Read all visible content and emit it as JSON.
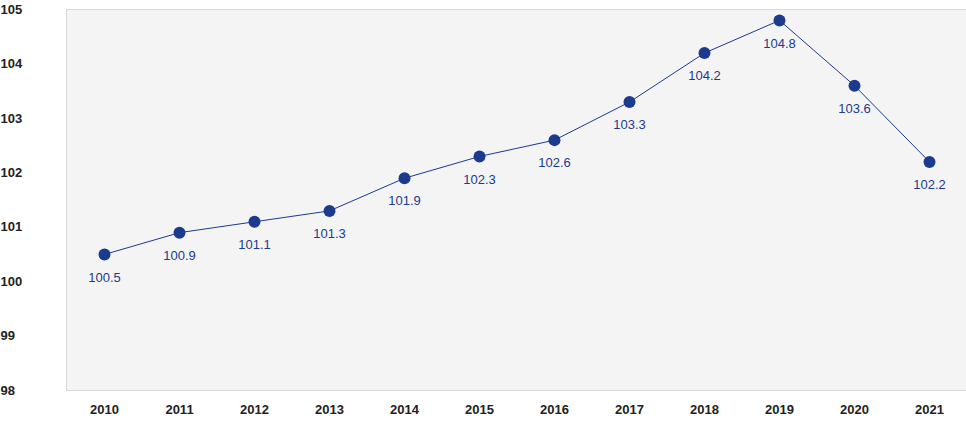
{
  "chart_data": {
    "type": "line",
    "categories": [
      "2010",
      "2011",
      "2012",
      "2013",
      "2014",
      "2015",
      "2016",
      "2017",
      "2018",
      "2019",
      "2020",
      "2021"
    ],
    "values": [
      100.5,
      100.9,
      101.1,
      101.3,
      101.9,
      102.3,
      102.6,
      103.3,
      104.2,
      104.8,
      103.6,
      102.2
    ],
    "color": "#1c3a8e",
    "marker": "circle",
    "ylim": [
      98,
      105
    ],
    "yticks": [
      98,
      99,
      100,
      101,
      102,
      103,
      104,
      105
    ],
    "grid": false,
    "data_labels": true
  }
}
